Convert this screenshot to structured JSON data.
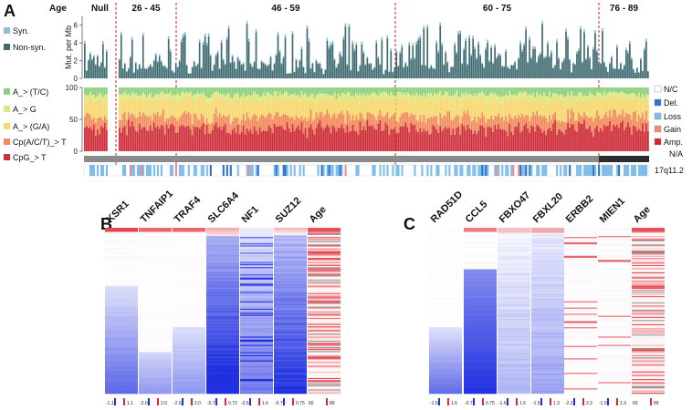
{
  "panels": {
    "a": "A",
    "b": "B",
    "c": "C"
  },
  "chart_data": [
    {
      "type": "bar",
      "panel": "A",
      "subtype": "stacked mutation-rate track",
      "age_label": "Age",
      "age_groups": [
        "Null",
        "26 - 45",
        "46 - 59",
        "60 - 75",
        "76 - 89"
      ],
      "ylabel": "Mut. per Mb",
      "yticks": [
        0,
        2,
        4,
        6
      ],
      "ylim": [
        0,
        7
      ],
      "legend": [
        {
          "name": "Syn.",
          "color": "#8cc2cc"
        },
        {
          "name": "Non-syn.",
          "color": "#3f6b72"
        }
      ]
    },
    {
      "type": "bar",
      "panel": "A",
      "subtype": "stacked mutation-spectrum track (percent)",
      "yticks": [
        0,
        50,
        100
      ],
      "ylim": [
        0,
        100
      ],
      "legend": [
        {
          "name": "A_> (T/C)",
          "color": "#8ccf7e"
        },
        {
          "name": "A_> G",
          "color": "#dbe982"
        },
        {
          "name": "A_> (G/A)",
          "color": "#f6d86f"
        },
        {
          "name": "Cp(A/C/T)_> T",
          "color": "#f28c5e"
        },
        {
          "name": "CpG_> T",
          "color": "#cf2f3a"
        }
      ]
    },
    {
      "type": "heatmap",
      "panel": "A",
      "subtype": "copy-number track",
      "row_label": "17q11.2",
      "legend": [
        {
          "name": "N/C",
          "color": "#ffffff"
        },
        {
          "name": "Del.",
          "color": "#2f73c8"
        },
        {
          "name": "Loss",
          "color": "#7fbde9"
        },
        {
          "name": "Gain",
          "color": "#f08a86"
        },
        {
          "name": "Amp.",
          "color": "#d8232a"
        },
        {
          "name": "N/A",
          "color": "#ffffff"
        }
      ]
    },
    {
      "type": "heatmap",
      "panel": "B",
      "columns": [
        "KSR1",
        "TNFAIP1",
        "TRAF4",
        "SLC6A4",
        "NF1",
        "SUZ12",
        "Age"
      ],
      "scale_min_labels": [
        "-1.1",
        "-2.0",
        "-2.6",
        "-0.72",
        "-3.5",
        "-0.75",
        "60"
      ],
      "scale_max_labels": [
        "1.1",
        "2.0",
        "2.0",
        "0.72",
        "1.6",
        "0.75",
        "89"
      ],
      "low_color": "#1f2fe0",
      "mid_color": "#ffffff",
      "high_color": "#e0262e"
    },
    {
      "type": "heatmap",
      "panel": "C",
      "columns": [
        "RAD51D",
        "CCL5",
        "FBXO47",
        "FBXL20",
        "ERBB2",
        "MIEN1",
        "Age"
      ],
      "scale_min_labels": [
        "-1.6",
        "-0.75",
        "-1.6",
        "-1.5",
        "-2.2",
        "-1.9",
        "60"
      ],
      "scale_max_labels": [
        "1.6",
        "0.75",
        "1.6",
        "1.3",
        "2.2",
        "1.9",
        "89"
      ],
      "low_color": "#1f2fe0",
      "mid_color": "#ffffff",
      "high_color": "#e0262e"
    }
  ]
}
